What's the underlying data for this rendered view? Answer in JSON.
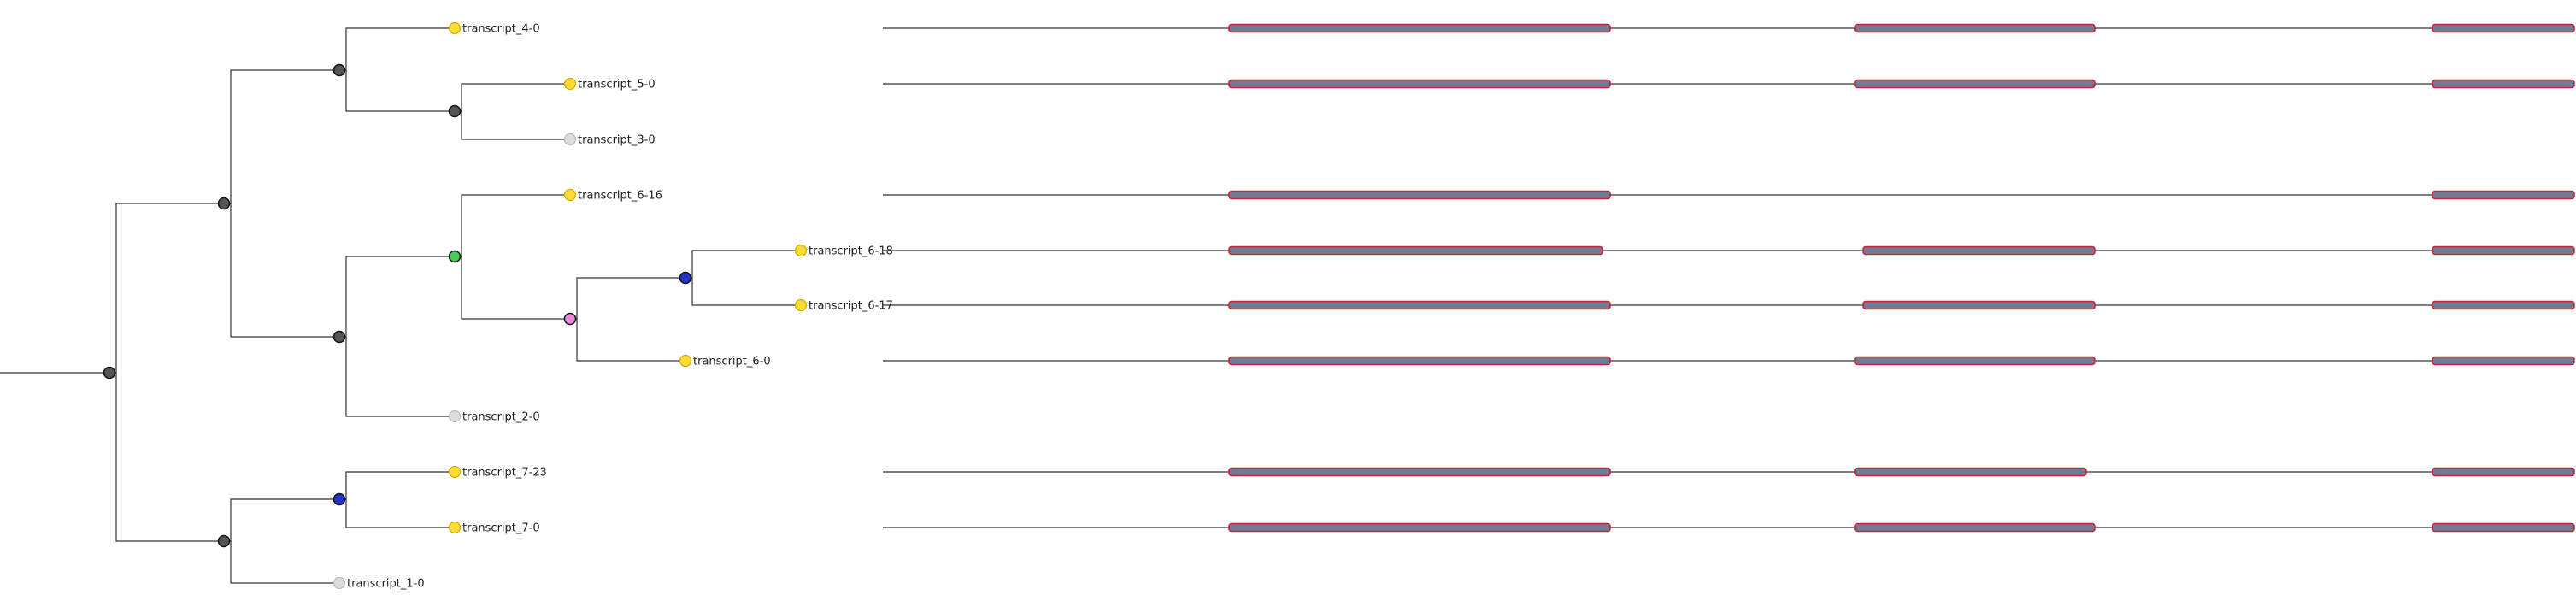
{
  "colors": {
    "line": "#333333",
    "node_default": "#555555",
    "node_blue": "#2233cc",
    "node_green": "#44cc55",
    "node_pink": "#ee88dd",
    "leaf_yellow": "#ffdd33",
    "leaf_grey": "#dddddd",
    "exon_fill": "#6f7c96",
    "exon_border": "#cc2233"
  },
  "tree": {
    "internal_nodes": [
      {
        "id": "root",
        "color": "node_default"
      },
      {
        "id": "n_a",
        "color": "node_default"
      },
      {
        "id": "n_b",
        "color": "node_default"
      },
      {
        "id": "n_c",
        "color": "node_default"
      },
      {
        "id": "n_d",
        "color": "node_default"
      },
      {
        "id": "n_e",
        "color": "node_green"
      },
      {
        "id": "n_f",
        "color": "node_pink"
      },
      {
        "id": "n_g",
        "color": "node_blue"
      },
      {
        "id": "n_h",
        "color": "node_default"
      },
      {
        "id": "n_i",
        "color": "node_blue"
      }
    ],
    "leaves": [
      {
        "id": "l1",
        "label": "transcript_4-0",
        "color": "leaf_yellow",
        "exons": [
          [
            0,
            1
          ],
          [
            2,
            3
          ],
          [
            4,
            5
          ]
        ]
      },
      {
        "id": "l2",
        "label": "transcript_5-0",
        "color": "leaf_yellow",
        "exons": [
          [
            0,
            1
          ],
          [
            2,
            3
          ],
          [
            4,
            5
          ]
        ]
      },
      {
        "id": "l3",
        "label": "transcript_3-0",
        "color": "leaf_grey",
        "exons": []
      },
      {
        "id": "l4",
        "label": "transcript_6-16",
        "color": "leaf_yellow",
        "exons": [
          [
            0,
            1
          ],
          [
            4,
            5
          ]
        ]
      },
      {
        "id": "l5",
        "label": "transcript_6-18",
        "color": "leaf_yellow",
        "exons": [
          [
            0,
            1
          ],
          [
            2,
            3
          ],
          [
            4,
            5
          ]
        ]
      },
      {
        "id": "l6",
        "label": "transcript_6-17",
        "color": "leaf_yellow",
        "exons": [
          [
            0,
            1
          ],
          [
            2,
            3
          ],
          [
            4,
            5
          ]
        ]
      },
      {
        "id": "l7",
        "label": "transcript_6-0",
        "color": "leaf_yellow",
        "exons": [
          [
            0,
            1
          ],
          [
            2,
            3
          ],
          [
            4,
            5
          ]
        ]
      },
      {
        "id": "l8",
        "label": "transcript_2-0",
        "color": "leaf_grey",
        "exons": []
      },
      {
        "id": "l9",
        "label": "transcript_7-23",
        "color": "leaf_yellow",
        "exons": [
          [
            0,
            1
          ],
          [
            2,
            3
          ],
          [
            4,
            5
          ]
        ]
      },
      {
        "id": "l10",
        "label": "transcript_7-0",
        "color": "leaf_yellow",
        "exons": [
          [
            0,
            1
          ],
          [
            2,
            3
          ],
          [
            4,
            5
          ]
        ]
      },
      {
        "id": "l11",
        "label": "transcript_1-0",
        "color": "leaf_grey",
        "exons": []
      }
    ]
  }
}
